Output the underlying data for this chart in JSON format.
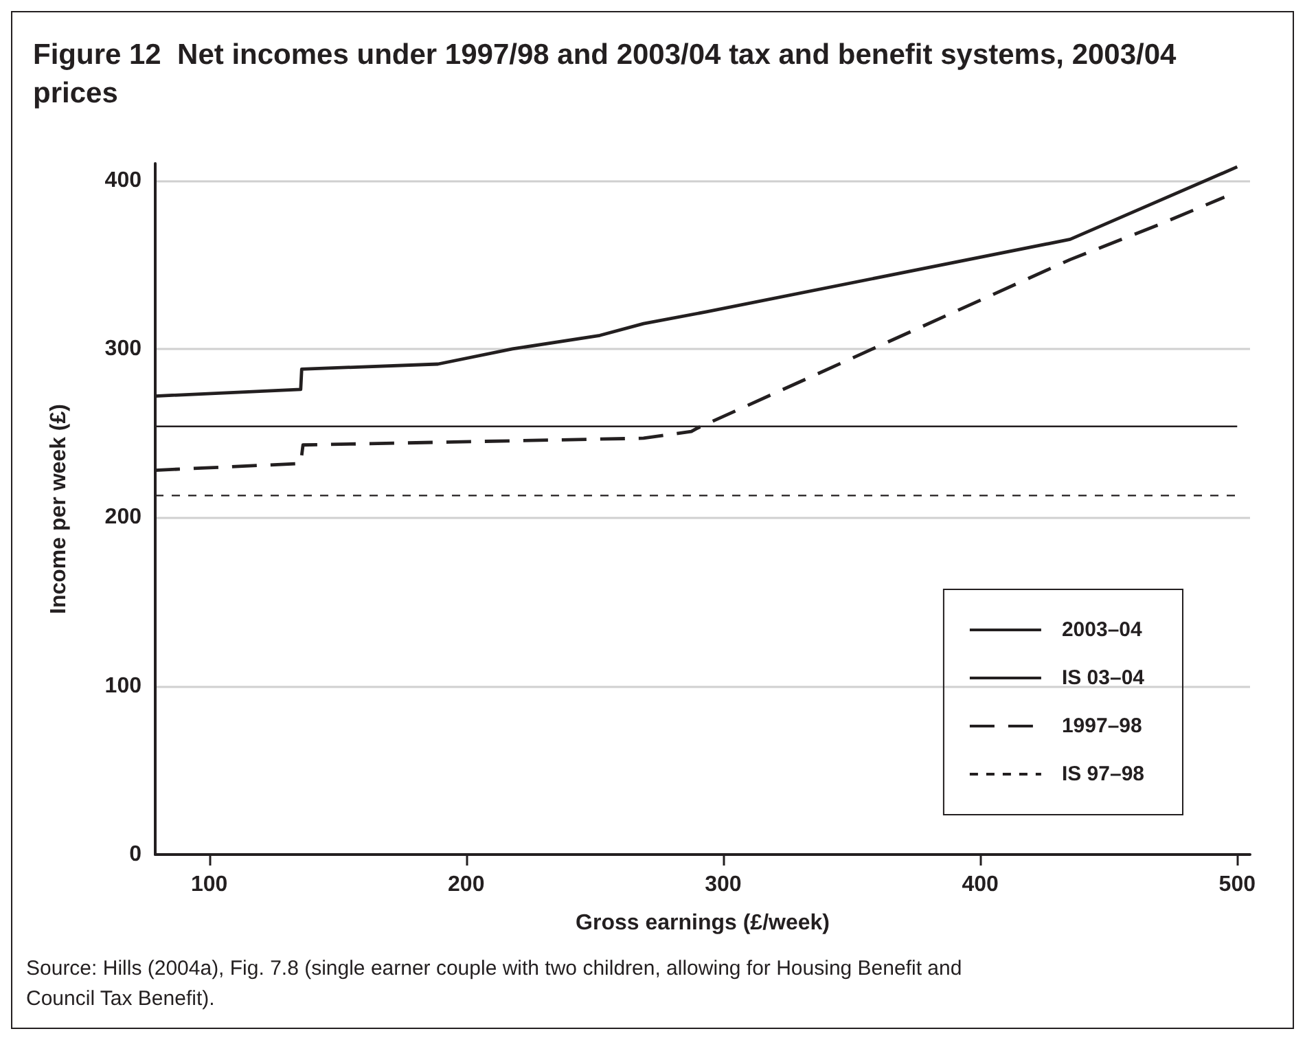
{
  "chart_data": {
    "type": "line",
    "title": "Figure 12  Net incomes under 1997/98 and 2003/04 tax and benefit systems, 2003/04 prices",
    "xlabel": "Gross earnings (£/week)",
    "ylabel": "Income per week (£)",
    "xlim": [
      79,
      505
    ],
    "xticks": [
      100,
      200,
      300,
      400,
      500
    ],
    "ylim": [
      0,
      410
    ],
    "yticks": [
      0,
      100,
      200,
      300,
      400
    ],
    "grid": "y",
    "legend": "bottom right",
    "marker": "none",
    "series": [
      {
        "name": "2003–04",
        "color": "#231f20",
        "line_style": "solid",
        "x": [
          79,
          135.6,
          136,
          189,
          218,
          252,
          269,
          293.5,
          435,
          500
        ],
        "values": [
          272,
          276,
          288,
          291,
          300,
          308,
          315,
          322,
          365,
          408
        ]
      },
      {
        "name": "IS 03–04",
        "color": "#231f20",
        "line_style": "solid",
        "x": [
          79,
          500
        ],
        "values": [
          254,
          254
        ]
      },
      {
        "name": "1997–98",
        "color": "#231f20",
        "line_style": "dashed",
        "x": [
          79,
          135.6,
          136.5,
          269,
          287.6,
          290,
          435,
          470,
          495
        ],
        "values": [
          228,
          232,
          243,
          247,
          251,
          253,
          353,
          374,
          390
        ]
      },
      {
        "name": "IS 97–98",
        "color": "#231f20",
        "line_style": "dashed",
        "x": [
          79,
          500
        ],
        "values": [
          213,
          213
        ]
      }
    ],
    "annotations": [
      "Source: Hills (2004a), Fig. 7.8 (single earner couple with two children, allowing for Housing Benefit and Council Tax Benefit)."
    ]
  }
}
